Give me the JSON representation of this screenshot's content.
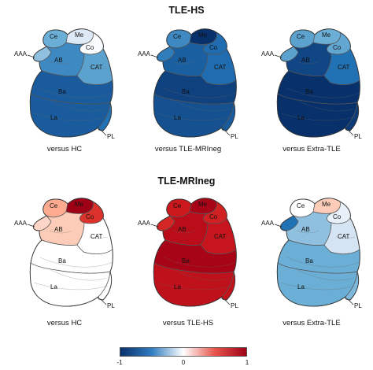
{
  "groups": [
    {
      "title": "TLE-HS",
      "panels": [
        {
          "caption": "versus HC",
          "values": {
            "Ce": 0.45,
            "Me": 0.12,
            "Co": 0.02,
            "AAA": 0.35,
            "AB": 0.6,
            "CAT": 0.5,
            "Ba": 0.8,
            "La": 0.8,
            "PL": 0.7
          }
        },
        {
          "caption": "versus TLE-MRIneg",
          "values": {
            "Ce": 0.6,
            "Me": 1.0,
            "Co": 0.72,
            "AAA": 0.65,
            "AB": 0.78,
            "CAT": 0.72,
            "Ba": 0.92,
            "La": 0.85,
            "PL": 0.8
          }
        },
        {
          "caption": "versus Extra-TLE",
          "values": {
            "Ce": 0.5,
            "Me": 0.45,
            "Co": 0.48,
            "AAA": 0.5,
            "AB": 0.9,
            "CAT": 0.7,
            "Ba": 1.0,
            "La": 1.0,
            "PL": 0.95
          }
        }
      ]
    },
    {
      "title": "TLE-MRIneg",
      "panels": [
        {
          "caption": "versus HC",
          "values": {
            "Ce": 0.25,
            "Me": 1.0,
            "Co": 0.65,
            "AAA": 0.12,
            "AB": 0.15,
            "CAT": 0.0,
            "Ba": 0.0,
            "La": 0.0,
            "PL": 0.0
          }
        },
        {
          "caption": "versus TLE-HS",
          "values": {
            "Ce": 0.75,
            "Me": 0.95,
            "Co": 0.72,
            "AAA": 0.7,
            "AB": 0.85,
            "CAT": 0.78,
            "Ba": 0.95,
            "La": 0.82,
            "PL": 0.8
          }
        },
        {
          "caption": "versus Extra-TLE",
          "values": {
            "Ce": 0.0,
            "Me": 0.15,
            "Co": 0.08,
            "AAA": 0.7,
            "AB": 0.35,
            "CAT": 0.15,
            "Ba": 0.45,
            "La": 0.45,
            "PL": 0.4
          }
        }
      ]
    }
  ],
  "signs": [
    {
      "Ce": -1,
      "Me": -1,
      "Co": -1,
      "AAA": -1,
      "AB": -1,
      "CAT": -1,
      "Ba": -1,
      "La": -1,
      "PL": -1
    },
    {
      "Ce": -1,
      "Me": -1,
      "Co": -1,
      "AAA": -1,
      "AB": -1,
      "CAT": -1,
      "Ba": -1,
      "La": -1,
      "PL": -1
    },
    {
      "Ce": -1,
      "Me": -1,
      "Co": -1,
      "AAA": -1,
      "AB": -1,
      "CAT": -1,
      "Ba": -1,
      "La": -1,
      "PL": -1
    },
    {
      "Ce": 1,
      "Me": 1,
      "Co": 1,
      "AAA": 1,
      "AB": 1,
      "CAT": 1,
      "Ba": 1,
      "La": 1,
      "PL": 1
    },
    {
      "Ce": 1,
      "Me": 1,
      "Co": 1,
      "AAA": 1,
      "AB": 1,
      "CAT": 1,
      "Ba": 1,
      "La": 1,
      "PL": 1
    },
    {
      "Ce": 1,
      "Me": 1,
      "Co": -1,
      "AAA": -1,
      "AB": -1,
      "CAT": -1,
      "Ba": -1,
      "La": -1,
      "PL": -1
    }
  ],
  "region_labels": [
    "Ce",
    "Me",
    "Co",
    "AAA",
    "AB",
    "CAT",
    "Ba",
    "La",
    "PL"
  ],
  "colorbar": {
    "ticks": [
      "-1",
      "0",
      "1"
    ],
    "colors": {
      "neg": "#08306b",
      "mid": "#ffffff",
      "pos": "#9e0016"
    }
  }
}
